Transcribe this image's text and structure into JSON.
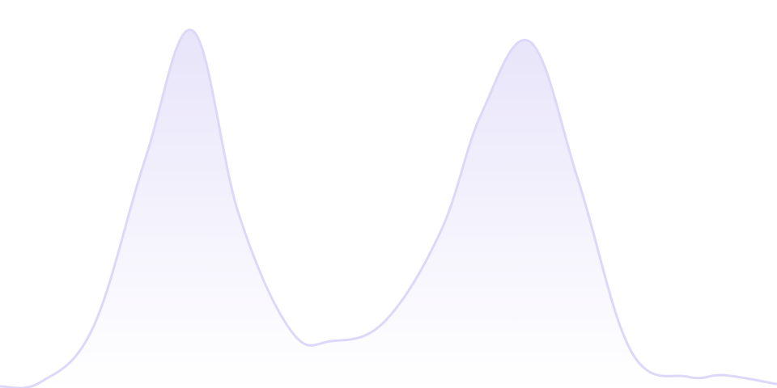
{
  "chart_data": {
    "type": "area",
    "title": "",
    "xlabel": "",
    "ylabel": "",
    "x": [
      0,
      50,
      115,
      180,
      238,
      295,
      360,
      410,
      475,
      545,
      595,
      655,
      715,
      780,
      850,
      895,
      960
    ],
    "series": [
      {
        "values": [
          0.4,
          1.5,
          15.6,
          59.4,
          92.1,
          44.8,
          14.6,
          12.1,
          17.1,
          40.6,
          70.8,
          89.2,
          53.1,
          9.4,
          2.9,
          3.3,
          1.0
        ]
      }
    ],
    "xlim": [
      0,
      960
    ],
    "ylim": [
      0,
      100
    ],
    "grid": false,
    "axes_visible": false,
    "legend": "none",
    "colors": {
      "stroke": "#ddd8f7",
      "fill_top": "#e8e4fa",
      "fill_bottom": "#ffffff"
    }
  }
}
